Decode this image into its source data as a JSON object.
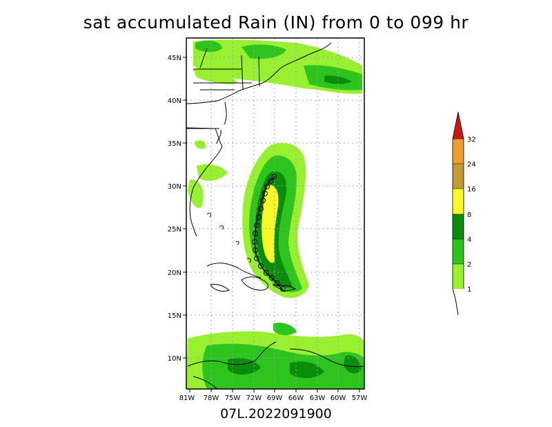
{
  "title": "sat accumulated Rain (IN) from 0 to 099 hr",
  "subtitle": "07L.2022091900",
  "map": {
    "lon_ticks": [
      "81W",
      "78W",
      "75W",
      "72W",
      "69W",
      "66W",
      "63W",
      "60W",
      "57W"
    ],
    "lat_ticks": [
      "10N",
      "15N",
      "20N",
      "25N",
      "30N",
      "35N",
      "40N",
      "45N"
    ]
  },
  "legend": {
    "levels": [
      "1",
      "2",
      "4",
      "8",
      "16",
      "24",
      "32"
    ],
    "colors": [
      "#98f030",
      "#2ec41e",
      "#0b8c0b",
      "#f8f82a",
      "#c49a32",
      "#ec9e30",
      "#c81a14"
    ]
  }
}
